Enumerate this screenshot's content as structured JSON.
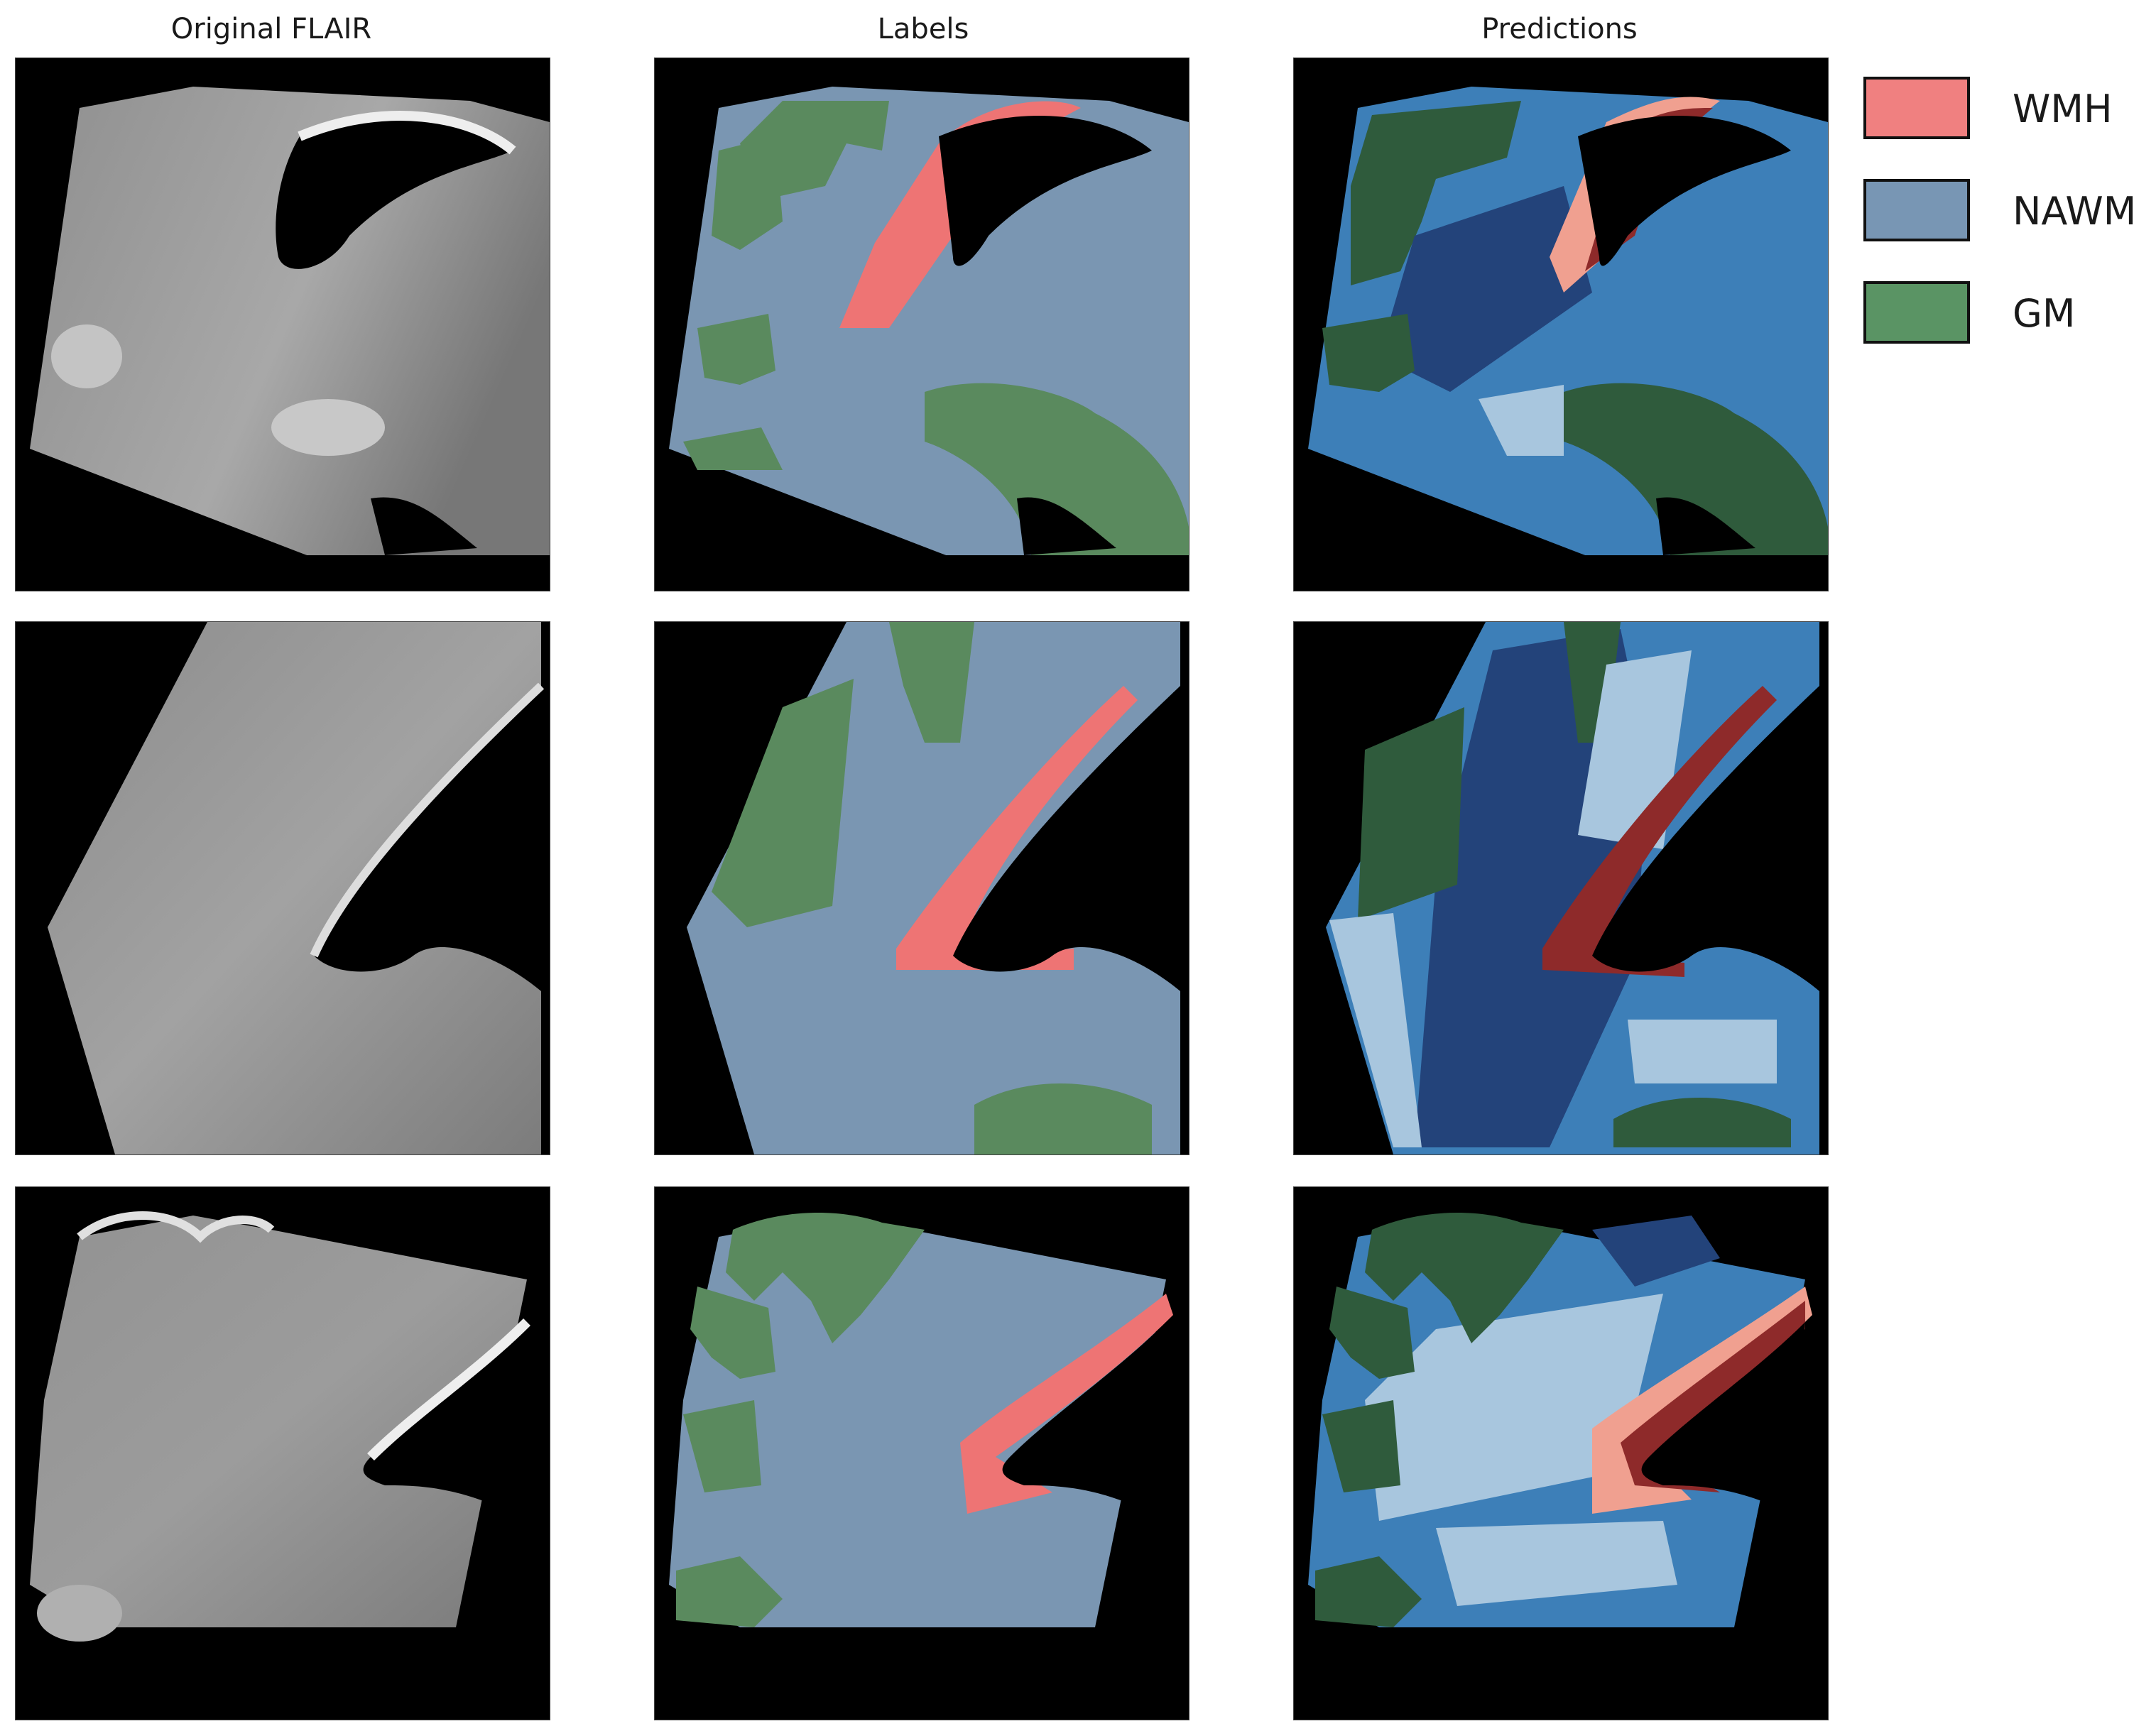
{
  "columns": [
    {
      "title": "Original FLAIR"
    },
    {
      "title": "Labels"
    },
    {
      "title": "Predictions"
    }
  ],
  "legend": [
    {
      "label": "WMH",
      "color": "#f08080"
    },
    {
      "label": "NAWM",
      "color": "#7896b4"
    },
    {
      "label": "GM",
      "color": "#5a9464"
    }
  ]
}
